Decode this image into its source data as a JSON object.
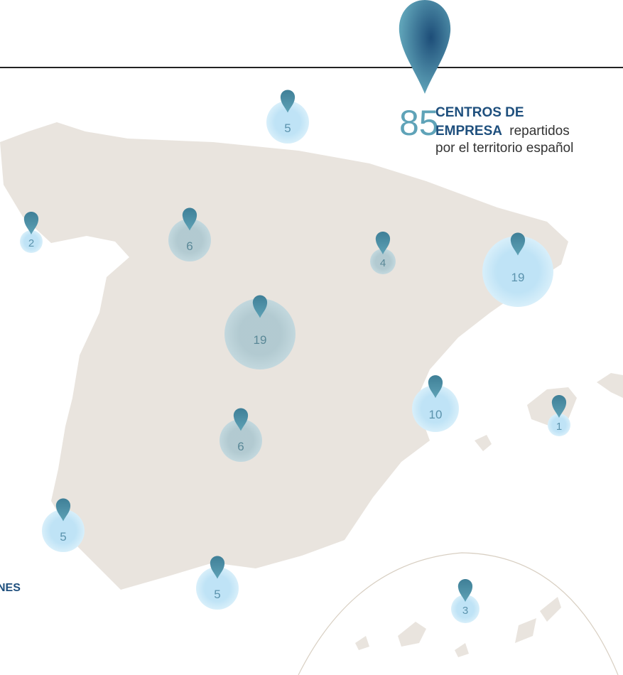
{
  "headline": {
    "count": 85,
    "bold": [
      "CENTROS DE",
      "EMPRESA"
    ],
    "plain": [
      "repartidos",
      "por el territorio español"
    ]
  },
  "markers": [
    5,
    2,
    6,
    4,
    19,
    19,
    10,
    1,
    6,
    5,
    5,
    3
  ],
  "side_label": "NES"
}
